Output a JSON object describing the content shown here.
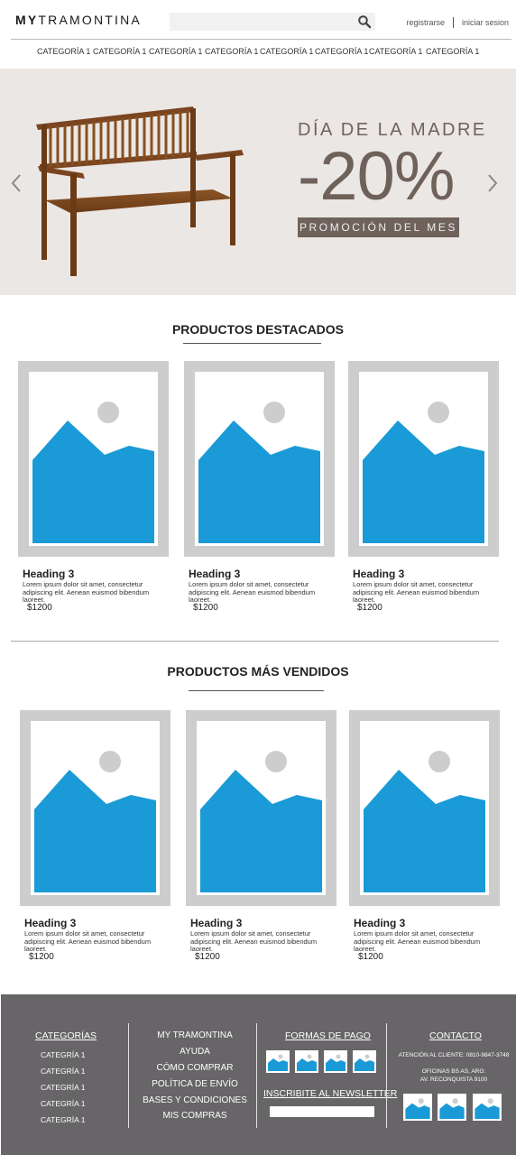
{
  "header": {
    "logo_prefix": "MY",
    "logo_rest": "TRAMONTINA",
    "search_placeholder": "",
    "register": "registrarse",
    "login": "iniciar sesion"
  },
  "nav": {
    "items": [
      "CATEGORÍA 1",
      "CATEGORÍA 1",
      "CATEGORÍA 1",
      "CATEGORÍA 1",
      "CATEGORÍA 1",
      "CATEGORÍA 1",
      "CATEGORÍA 1",
      "CATEGORÍA 1"
    ]
  },
  "hero": {
    "title": "DÍA DE LA MADRE",
    "discount": "-20%",
    "tag": "PROMOCIÓN DEL MES"
  },
  "featured": {
    "title": "PRODUCTOS DESTACADOS",
    "products": [
      {
        "heading": "Heading 3",
        "desc": "Lorem ipsum dolor sit amet, consectetur adipiscing elit. Aenean euismod bibendum laoreet.",
        "price": "$1200"
      },
      {
        "heading": "Heading 3",
        "desc": "Lorem ipsum dolor sit amet, consectetur adipiscing elit. Aenean euismod bibendum laoreet.",
        "price": "$1200"
      },
      {
        "heading": "Heading 3",
        "desc": "Lorem ipsum dolor sit amet, consectetur adipiscing elit. Aenean euismod bibendum laoreet.",
        "price": "$1200"
      }
    ]
  },
  "bestsellers": {
    "title": "PRODUCTOS MÁS VENDIDOS",
    "products": [
      {
        "heading": "Heading 3",
        "desc": "Lorem ipsum dolor sit amet, consectetur adipiscing elit. Aenean euismod bibendum laoreet.",
        "price": "$1200"
      },
      {
        "heading": "Heading 3",
        "desc": "Lorem ipsum dolor sit amet, consectetur adipiscing elit. Aenean euismod bibendum laoreet.",
        "price": "$1200"
      },
      {
        "heading": "Heading 3",
        "desc": "Lorem ipsum dolor sit amet, consectetur adipiscing elit. Aenean euismod bibendum laoreet.",
        "price": "$1200"
      }
    ]
  },
  "footer": {
    "categories": {
      "title": "CATEGORÍAS",
      "items": [
        "CATEGRÍA 1",
        "CATEGRÍA 1",
        "CATEGRÍA 1",
        "CATEGRÍA 1",
        "CATEGRÍA 1"
      ]
    },
    "links": [
      "MY TRAMONTINA",
      "AYUDA",
      "CÓMO COMPRAR",
      "POLÍTICA DE ENVÍO",
      "BASES Y CONDICIONES",
      "MIS COMPRAS"
    ],
    "payment_title": "FORMAS DE PAGO",
    "newsletter_title": "INSCRIBITE AL NEWSLETTER",
    "contact": {
      "title": "CONTACTO",
      "phone": "ATENCIÓN AL CLIENTE: 0810-9847-3748",
      "office_line1": "OFICINAS BS AS, ARG:",
      "office_line2": "AV. RECONQUISTA 9100"
    }
  },
  "colors": {
    "image_blue": "#1a9ad6",
    "placeholder_gray": "#cdcdcd",
    "hero_bg": "#ebe7e4",
    "hero_brown": "#6f625b",
    "footer_bg": "#676567"
  }
}
